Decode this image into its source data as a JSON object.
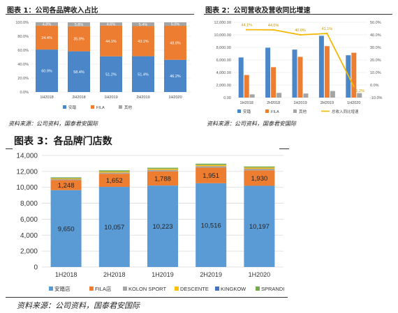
{
  "chart_data": [
    {
      "type": "bar",
      "stacked": true,
      "percent": true,
      "title": "图表 1：公司各品牌收入占比",
      "categories": [
        "1H2018",
        "2H2018",
        "1H2019",
        "2H2019",
        "1H2020"
      ],
      "series": [
        {
          "name": "安踏",
          "color": "#4a86c8",
          "values": [
            60.9,
            58.4,
            51.2,
            51.4,
            46.2
          ],
          "labels": [
            "60.9%",
            "58.4%",
            "51.2%",
            "51.4%",
            "46.2%"
          ]
        },
        {
          "name": "FILA",
          "color": "#ed7d31",
          "values": [
            34.4,
            35.8,
            44.1,
            43.1,
            48.8
          ],
          "labels": [
            "34.4%",
            "35.8%",
            "44.1%",
            "43.1%",
            "48.8%"
          ]
        },
        {
          "name": "其他",
          "color": "#a5a5a5",
          "values": [
            4.8,
            5.8,
            4.6,
            5.4,
            5.0
          ],
          "labels": [
            "4.8%",
            "5.8%",
            "4.6%",
            "5.4%",
            "5.0%"
          ]
        }
      ],
      "ylim": [
        0,
        100
      ],
      "yticks": [
        "0.0%",
        "20.0%",
        "40.0%",
        "60.0%",
        "80.0%",
        "100.0%"
      ],
      "legend": "bottom",
      "source": "资料来源：公司资料，国泰君安国际"
    },
    {
      "type": "bar+line",
      "title": "图表 2：公司营收及营收同比增速",
      "categories": [
        "1H2018",
        "2H2018",
        "1H2019",
        "2H2019",
        "1H2020"
      ],
      "series": [
        {
          "name": "安踏",
          "color": "#4a86c8",
          "values": [
            6400,
            7950,
            7650,
            9850,
            6750
          ]
        },
        {
          "name": "FILA",
          "color": "#ed7d31",
          "values": [
            3600,
            4850,
            6500,
            8200,
            7150
          ]
        },
        {
          "name": "其他",
          "color": "#a5a5a5",
          "values": [
            520,
            750,
            650,
            1050,
            720
          ]
        }
      ],
      "line": {
        "name": "总收入同比增速",
        "color": "#f2b800",
        "values": [
          44.1,
          44.0,
          40.0,
          41.1,
          -1.2
        ],
        "labels": [
          "44.1%",
          "44.0%",
          "40.0%",
          "41.1%",
          "-1.2%"
        ]
      },
      "ylim": [
        0,
        12000
      ],
      "yticks": [
        "0.00",
        "2,000.00",
        "4,000.00",
        "6,000.00",
        "8,000.00",
        "10,000.00",
        "12,000.00"
      ],
      "y2lim": [
        -10,
        50
      ],
      "y2ticks": [
        "-10.0%",
        "0.0%",
        "10.0%",
        "20.0%",
        "30.0%",
        "40.0%",
        "50.0%"
      ],
      "legend": "bottom",
      "source": "资料来源：公司资料，国泰君安国际"
    },
    {
      "type": "bar",
      "stacked": true,
      "title": "图表 3：各品牌门店数",
      "categories": [
        "1H2018",
        "2H2018",
        "1H2019",
        "2H2019",
        "1H2020"
      ],
      "series": [
        {
          "name": "安踏店",
          "color": "#5b9bd5",
          "values": [
            9650,
            10057,
            10223,
            10516,
            10197
          ],
          "labels": [
            "9,650",
            "10,057",
            "10,223",
            "10,516",
            "10,197"
          ]
        },
        {
          "name": "FILA店",
          "color": "#ed7d31",
          "values": [
            1248,
            1652,
            1788,
            1951,
            1930
          ],
          "labels": [
            "1,248",
            "1,652",
            "1,788",
            "1,951",
            "1,930"
          ]
        },
        {
          "name": "KOLON SPORT",
          "color": "#a5a5a5",
          "values": [
            130,
            160,
            180,
            200,
            210
          ]
        },
        {
          "name": "DESCENTE",
          "color": "#ffc000",
          "values": [
            100,
            120,
            130,
            140,
            150
          ]
        },
        {
          "name": "KINGKOW",
          "color": "#4472c4",
          "values": [
            30,
            30,
            30,
            30,
            30
          ]
        },
        {
          "name": "SPRANDI",
          "color": "#70ad47",
          "values": [
            90,
            110,
            110,
            130,
            100
          ]
        }
      ],
      "ylim": [
        0,
        14000
      ],
      "yticks": [
        "0",
        "2,000",
        "4,000",
        "6,000",
        "8,000",
        "10,000",
        "12,000",
        "14,000"
      ],
      "legend": "bottom",
      "source": "资料来源：公司资料，国泰君安国际"
    }
  ]
}
